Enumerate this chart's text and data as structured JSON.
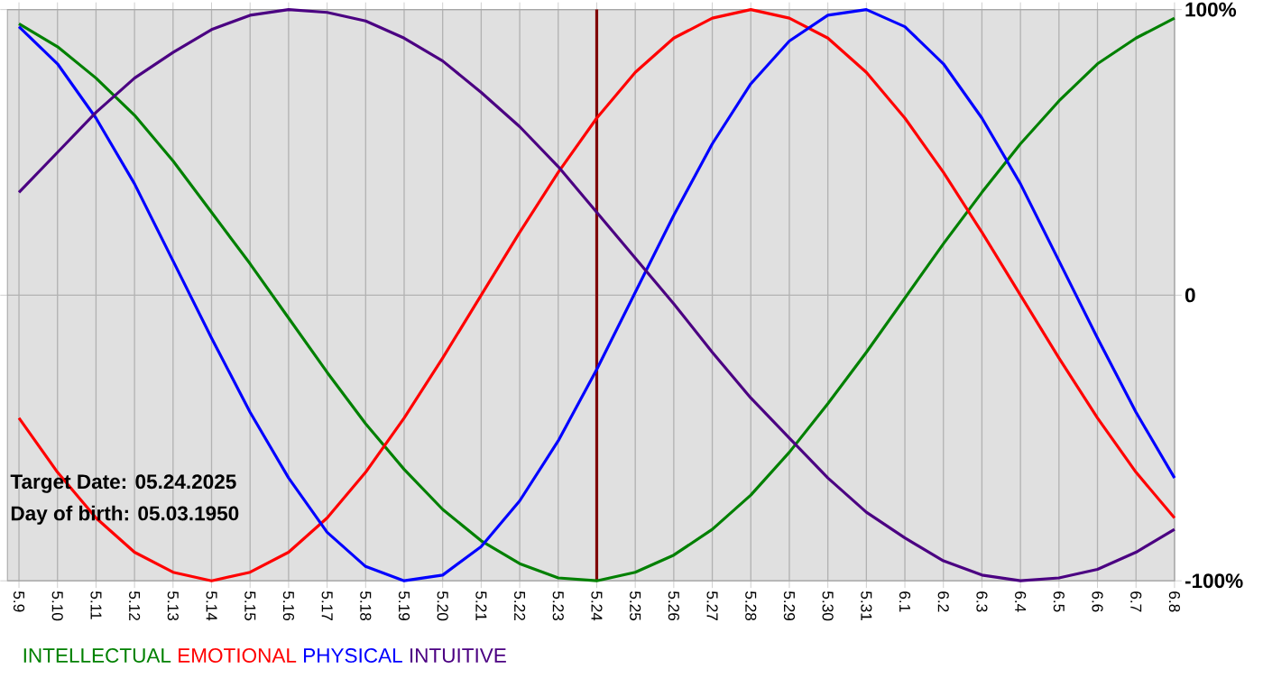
{
  "chart_data": {
    "type": "line",
    "categories": [
      "5.9",
      "5.10",
      "5.11",
      "5.12",
      "5.13",
      "5.14",
      "5.15",
      "5.16",
      "5.17",
      "5.18",
      "5.19",
      "5.20",
      "5.21",
      "5.22",
      "5.23",
      "5.24",
      "5.25",
      "5.26",
      "5.27",
      "5.28",
      "5.29",
      "5.30",
      "5.31",
      "6.1",
      "6.2",
      "6.3",
      "6.4",
      "6.5",
      "6.6",
      "6.7",
      "6.8"
    ],
    "series": [
      {
        "name": "INTELLECTUAL",
        "color": "#008000",
        "values": [
          95,
          87,
          76,
          63,
          47,
          29,
          11,
          -8,
          -27,
          -45,
          -61,
          -75,
          -86,
          -94,
          -99,
          -100,
          -97,
          -91,
          -82,
          -70,
          -55,
          -38,
          -20,
          -1,
          18,
          36,
          53,
          68,
          81,
          90,
          97
        ]
      },
      {
        "name": "EMOTIONAL",
        "color": "#ff0000",
        "values": [
          -43,
          -62,
          -78,
          -90,
          -97,
          -100,
          -97,
          -90,
          -78,
          -62,
          -43,
          -22,
          0,
          22,
          43,
          62,
          78,
          90,
          97,
          100,
          97,
          90,
          78,
          62,
          43,
          22,
          0,
          -22,
          -43,
          -62,
          -78
        ]
      },
      {
        "name": "PHYSICAL",
        "color": "#0000ff",
        "values": [
          94,
          81,
          62,
          39,
          12,
          -15,
          -41,
          -64,
          -83,
          -95,
          -100,
          -98,
          -88,
          -72,
          -51,
          -26,
          1,
          28,
          53,
          74,
          89,
          98,
          100,
          94,
          81,
          62,
          39,
          12,
          -15,
          -41,
          -64
        ]
      },
      {
        "name": "INTUITIVE",
        "color": "#4b0082",
        "values": [
          36,
          50,
          64,
          76,
          85,
          93,
          98,
          100,
          99,
          96,
          90,
          82,
          71,
          59,
          45,
          29,
          13,
          -3,
          -20,
          -36,
          -50,
          -64,
          -76,
          -85,
          -93,
          -98,
          -100,
          -99,
          -96,
          -90,
          -82
        ]
      }
    ],
    "ylim": [
      -100,
      100
    ],
    "yticks": [
      {
        "value": -100,
        "label": "-100%"
      },
      {
        "value": 0,
        "label": "0"
      },
      {
        "value": 100,
        "label": "100%"
      }
    ],
    "grid": true,
    "legend": "bottom left",
    "ref_lines": [
      {
        "axis": "x",
        "value": "5.24",
        "color": "#800000"
      }
    ],
    "annotations": [
      "Target Date: 05.24.2025",
      "Day of birth: 05.03.1950"
    ]
  }
}
